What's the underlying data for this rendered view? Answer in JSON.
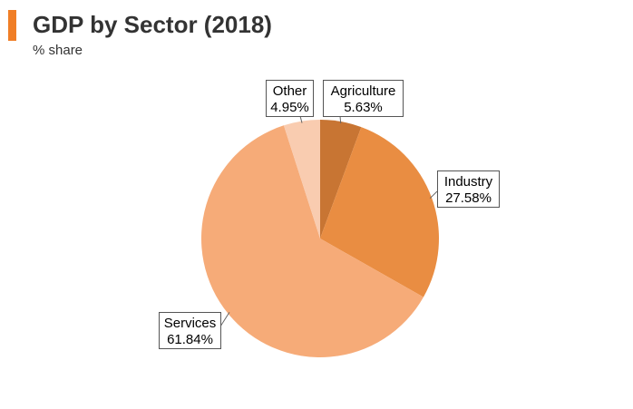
{
  "header": {
    "title": "GDP by Sector (2018)",
    "subtitle": "% share"
  },
  "colors": {
    "accent": "#f07e26",
    "Agriculture": "#c87533",
    "Industry": "#e98d42",
    "Services": "#f6ab78",
    "Other": "#f9ccb0"
  },
  "chart_data": {
    "type": "pie",
    "slices": [
      {
        "name": "Agriculture",
        "label": "Agriculture",
        "value": 5.63,
        "value_label": "5.63%"
      },
      {
        "name": "Industry",
        "label": "Industry",
        "value": 27.58,
        "value_label": "27.58%"
      },
      {
        "name": "Services",
        "label": "Services",
        "value": 61.84,
        "value_label": "61.84%"
      },
      {
        "name": "Other",
        "label": "Other",
        "value": 4.95,
        "value_label": "4.95%"
      }
    ],
    "start": "12 o'clock",
    "direction": "clockwise"
  }
}
